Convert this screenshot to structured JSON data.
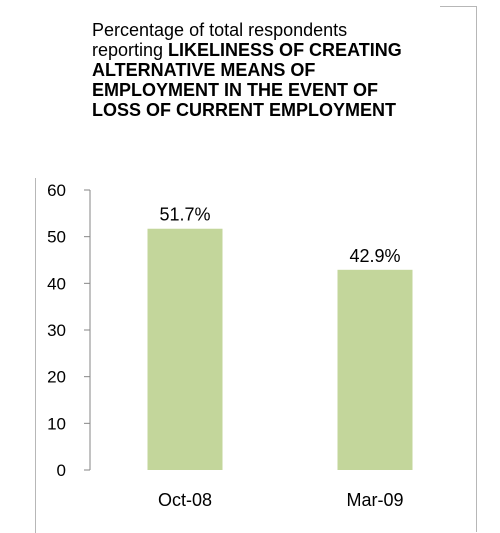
{
  "chart_data": {
    "type": "bar",
    "title_prefix": "Percentage of total respondents reporting ",
    "title_emphasis": "LIKELINESS OF CREATING ALTERNATIVE MEANS OF EMPLOYMENT IN THE EVENT OF LOSS OF CURRENT EMPLOYMENT",
    "categories": [
      "Oct-08",
      "Mar-09"
    ],
    "values": [
      51.7,
      42.9
    ],
    "data_labels": [
      "51.7%",
      "42.9%"
    ],
    "ylim": [
      0,
      60
    ],
    "yticks": [
      0,
      10,
      20,
      30,
      40,
      50,
      60
    ],
    "xlabel": "",
    "ylabel": "",
    "grid": false,
    "bar_color": "#c3d69b"
  }
}
